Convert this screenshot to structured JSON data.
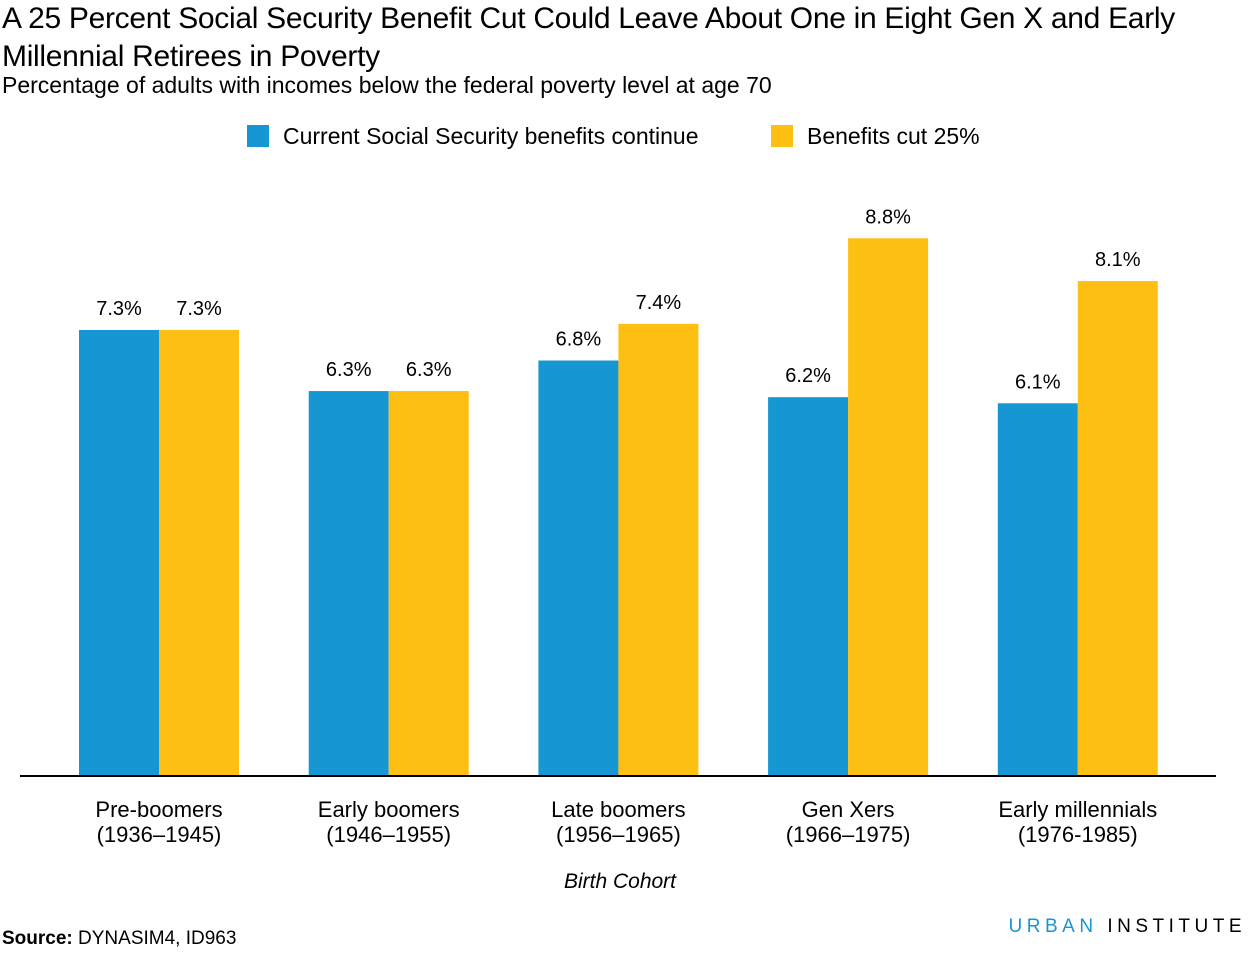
{
  "title": "A 25 Percent Social Security Benefit Cut Could Leave About One in Eight Gen X and Early Millennial Retirees in Poverty",
  "subtitle": "Percentage of adults with incomes below the federal poverty level at age 70",
  "source_label": "Source:",
  "source_text": "DYNASIM4, ID963",
  "brand_part1": "URBAN",
  "brand_part2": "INSTITUTE",
  "colors": {
    "series1": "#1696d2",
    "series2": "#fdbf11",
    "axis": "#000000",
    "text": "#000000"
  },
  "chart_data": {
    "type": "bar",
    "title": "A 25 Percent Social Security Benefit Cut Could Leave About One in Eight Gen X and Early Millennial Retirees in Poverty",
    "subtitle": "Percentage of adults with incomes below the federal poverty level at age 70",
    "xlabel": "Birth Cohort",
    "ylabel": "",
    "ylim": [
      0,
      10
    ],
    "grid": false,
    "legend_position": "top-center",
    "categories": [
      [
        "Pre-boomers",
        "(1936–1945)"
      ],
      [
        "Early boomers",
        "(1946–1955)"
      ],
      [
        "Late boomers",
        "(1956–1965)"
      ],
      [
        "Gen Xers",
        "(1966–1975)"
      ],
      [
        "Early millennials",
        "(1976-1985)"
      ]
    ],
    "series": [
      {
        "name": "Current Social Security benefits continue",
        "values": [
          7.3,
          6.3,
          6.8,
          6.2,
          6.1
        ],
        "labels": [
          "7.3%",
          "6.3%",
          "6.8%",
          "6.2%",
          "6.1%"
        ],
        "color": "#1696d2"
      },
      {
        "name": "Benefits cut 25%",
        "values": [
          7.3,
          6.3,
          7.4,
          8.8,
          8.1
        ],
        "labels": [
          "7.3%",
          "6.3%",
          "7.4%",
          "8.8%",
          "8.1%"
        ],
        "color": "#fdbf11"
      }
    ]
  }
}
